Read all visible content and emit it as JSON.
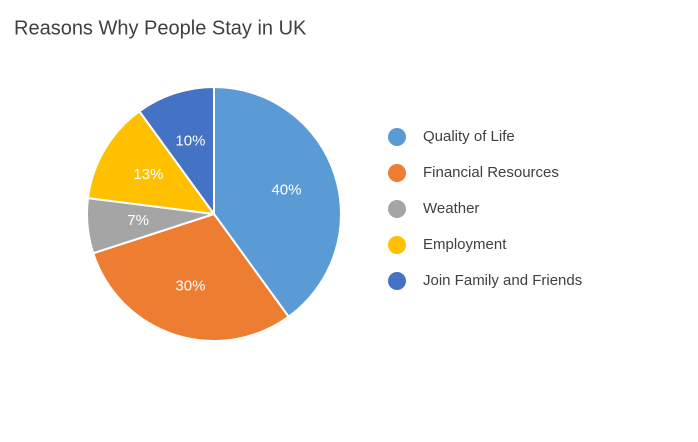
{
  "chart_data": {
    "type": "pie",
    "title": "Reasons Why People Stay in UK",
    "categories": [
      "Quality of Life",
      "Financial Resources",
      "Weather",
      "Employment",
      "Join Family and Friends"
    ],
    "values": [
      40,
      30,
      7,
      13,
      10
    ],
    "value_labels": [
      "40%",
      "30%",
      "7%",
      "13%",
      "10%"
    ],
    "colors": [
      "#5b9bd5",
      "#ed7d31",
      "#a5a5a5",
      "#ffc000",
      "#4472c4"
    ],
    "legend": "right"
  }
}
